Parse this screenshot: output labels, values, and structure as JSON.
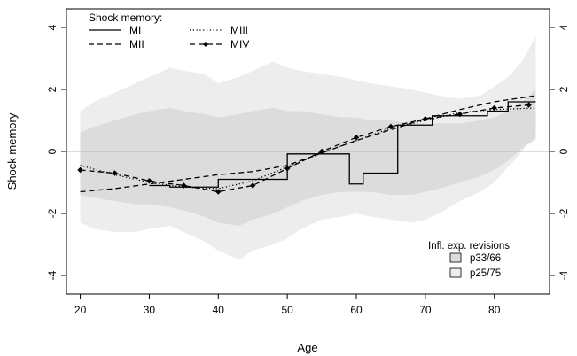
{
  "chart_data": {
    "type": "line",
    "xlabel": "Age",
    "ylabel": "Shock memory",
    "xlim": [
      18,
      88
    ],
    "ylim": [
      -4.6,
      4.6
    ],
    "x_ticks": [
      20,
      30,
      40,
      50,
      60,
      70,
      80
    ],
    "y_ticks": [
      -4,
      -2,
      0,
      2,
      4
    ],
    "right_axis": true,
    "grid": false,
    "zero_line": true,
    "legend_series": {
      "title": "Shock memory:",
      "placement": "top-left",
      "entries": [
        "MI",
        "MII",
        "MIII",
        "MIV"
      ]
    },
    "legend_bands": {
      "title": "Infl. exp. revisions",
      "placement": "bottom-right",
      "entries": [
        "p33/66",
        "p25/75"
      ]
    },
    "bands": [
      {
        "name": "p25/75",
        "color": "#ededed",
        "x": [
          20,
          22,
          25,
          28,
          30,
          33,
          35,
          38,
          40,
          43,
          45,
          48,
          50,
          52,
          55,
          58,
          60,
          62,
          65,
          68,
          70,
          72,
          75,
          78,
          80,
          82,
          84,
          86
        ],
        "upper": [
          1.3,
          1.6,
          1.9,
          2.2,
          2.4,
          2.7,
          2.6,
          2.5,
          2.2,
          2.4,
          2.6,
          2.9,
          2.7,
          2.6,
          2.5,
          2.4,
          2.3,
          2.2,
          2.1,
          2.0,
          1.9,
          1.8,
          1.7,
          1.8,
          2.1,
          2.4,
          2.9,
          3.7
        ],
        "lower": [
          -2.3,
          -2.5,
          -2.6,
          -2.6,
          -2.5,
          -2.4,
          -2.6,
          -2.9,
          -3.2,
          -3.5,
          -3.2,
          -3.0,
          -2.8,
          -2.5,
          -2.2,
          -2.1,
          -2.0,
          -2.1,
          -2.2,
          -2.3,
          -2.2,
          -2.0,
          -1.6,
          -1.3,
          -1.0,
          -0.5,
          0.0,
          0.6
        ]
      },
      {
        "name": "p33/66",
        "color": "#dcdcdc",
        "x": [
          20,
          22,
          25,
          28,
          30,
          33,
          35,
          38,
          40,
          43,
          45,
          48,
          50,
          52,
          55,
          58,
          60,
          62,
          65,
          68,
          70,
          72,
          75,
          78,
          80,
          82,
          84,
          86
        ],
        "upper": [
          0.6,
          0.8,
          1.0,
          1.2,
          1.3,
          1.4,
          1.3,
          1.2,
          1.1,
          1.2,
          1.3,
          1.4,
          1.3,
          1.3,
          1.2,
          1.1,
          1.1,
          1.0,
          1.0,
          0.9,
          0.9,
          0.9,
          0.9,
          1.0,
          1.1,
          1.3,
          1.6,
          2.0
        ],
        "lower": [
          -1.4,
          -1.5,
          -1.6,
          -1.7,
          -1.7,
          -1.8,
          -1.9,
          -2.1,
          -2.3,
          -2.4,
          -2.2,
          -2.0,
          -1.8,
          -1.6,
          -1.4,
          -1.3,
          -1.3,
          -1.3,
          -1.4,
          -1.4,
          -1.3,
          -1.2,
          -1.0,
          -0.8,
          -0.6,
          -0.3,
          0.1,
          0.4
        ]
      }
    ],
    "series": [
      {
        "name": "MI",
        "style": "solid",
        "x": [
          30,
          33,
          33,
          40,
          40,
          49,
          49,
          50,
          50,
          55,
          55,
          58,
          58,
          59,
          59,
          60,
          60,
          61,
          61,
          65,
          65,
          66,
          66,
          70,
          70,
          71,
          71,
          77,
          77,
          79,
          79,
          82,
          82,
          86
        ],
        "y": [
          -1.1,
          -1.1,
          -1.15,
          -1.15,
          -0.9,
          -0.9,
          -0.9,
          -0.9,
          -0.08,
          -0.08,
          -0.08,
          -0.08,
          -0.08,
          -0.08,
          -1.05,
          -1.05,
          -1.05,
          -1.05,
          -0.7,
          -0.7,
          -0.7,
          -0.7,
          0.85,
          0.85,
          0.85,
          0.85,
          1.15,
          1.15,
          1.15,
          1.15,
          1.3,
          1.3,
          1.6,
          1.6
        ]
      },
      {
        "name": "MII",
        "style": "dashed",
        "x": [
          20,
          25,
          30,
          35,
          40,
          45,
          50,
          55,
          60,
          65,
          70,
          75,
          80,
          86
        ],
        "y": [
          -1.3,
          -1.2,
          -1.05,
          -0.9,
          -0.75,
          -0.65,
          -0.45,
          -0.05,
          0.35,
          0.7,
          1.05,
          1.35,
          1.6,
          1.8
        ]
      },
      {
        "name": "MIII",
        "style": "dotted",
        "x": [
          20,
          25,
          30,
          35,
          40,
          45,
          50,
          55,
          60,
          65,
          70,
          75,
          80,
          86
        ],
        "y": [
          -0.45,
          -0.75,
          -1.0,
          -1.15,
          -1.2,
          -0.95,
          -0.5,
          -0.05,
          0.35,
          0.75,
          1.0,
          1.25,
          1.35,
          1.4
        ]
      },
      {
        "name": "MIV",
        "style": "dashed-markers",
        "x": [
          20,
          25,
          30,
          35,
          40,
          45,
          50,
          55,
          60,
          65,
          70,
          75,
          80,
          85
        ],
        "y": [
          -0.6,
          -0.7,
          -0.95,
          -1.1,
          -1.3,
          -1.1,
          -0.55,
          0.0,
          0.45,
          0.8,
          1.05,
          1.2,
          1.4,
          1.5
        ]
      }
    ]
  }
}
